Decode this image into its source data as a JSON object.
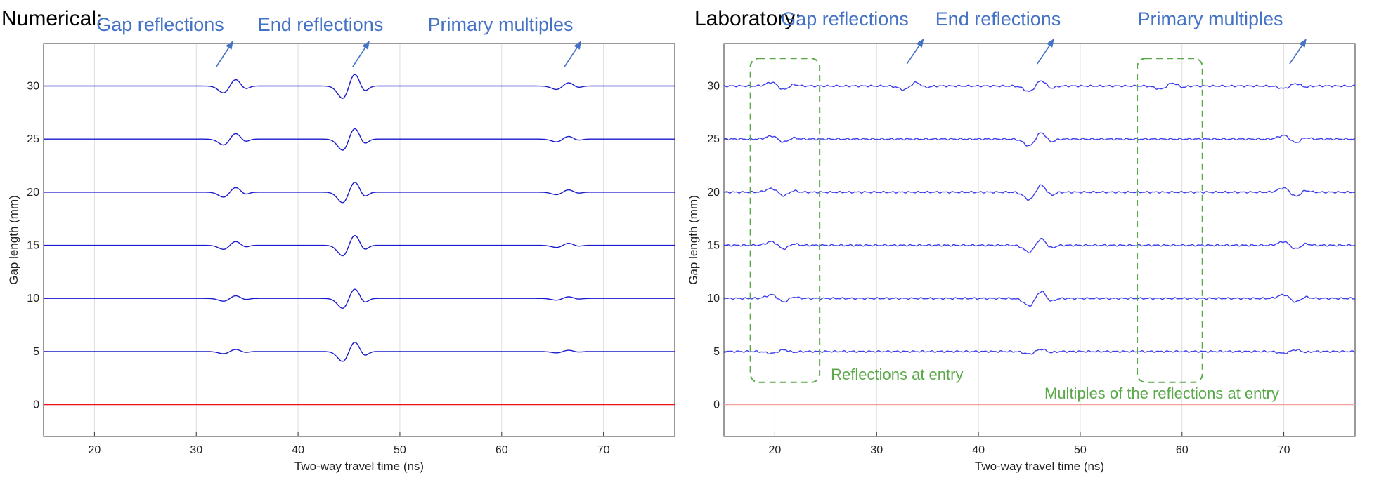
{
  "chart_data": [
    {
      "type": "line",
      "panel_title": "Numerical:",
      "xlabel": "Two-way travel time (ns)",
      "ylabel": "Gap length (mm)",
      "xlim": [
        15,
        77
      ],
      "ylim": [
        -3,
        34
      ],
      "xticks": [
        20,
        30,
        40,
        50,
        60,
        70
      ],
      "yticks": [
        0,
        5,
        10,
        15,
        20,
        25,
        30
      ],
      "grid": "vertical",
      "series": [
        {
          "offset": 0,
          "color": "#ee1111",
          "events": []
        },
        {
          "offset": 5,
          "color": "#1a1acc",
          "events": [
            {
              "t": 33.3,
              "amp": 0.35
            },
            {
              "t": 45.0,
              "amp": 1.6
            },
            {
              "t": 66.0,
              "amp": 0.22
            }
          ]
        },
        {
          "offset": 10,
          "color": "#1a1acc",
          "events": [
            {
              "t": 33.3,
              "amp": 0.45
            },
            {
              "t": 45.0,
              "amp": 1.6
            },
            {
              "t": 66.0,
              "amp": 0.28
            }
          ]
        },
        {
          "offset": 15,
          "color": "#1a1acc",
          "events": [
            {
              "t": 33.3,
              "amp": 0.65
            },
            {
              "t": 45.0,
              "amp": 1.7
            },
            {
              "t": 66.0,
              "amp": 0.35
            }
          ]
        },
        {
          "offset": 20,
          "color": "#1a1acc",
          "events": [
            {
              "t": 33.3,
              "amp": 0.8
            },
            {
              "t": 45.0,
              "amp": 1.7
            },
            {
              "t": 66.0,
              "amp": 0.4
            }
          ]
        },
        {
          "offset": 25,
          "color": "#1a1acc",
          "events": [
            {
              "t": 33.3,
              "amp": 0.95
            },
            {
              "t": 45.0,
              "amp": 1.8
            },
            {
              "t": 66.0,
              "amp": 0.45
            }
          ]
        },
        {
          "offset": 30,
          "color": "#1a1acc",
          "events": [
            {
              "t": 33.3,
              "amp": 1.1
            },
            {
              "t": 45.0,
              "amp": 2.0
            },
            {
              "t": 66.0,
              "amp": 0.55
            }
          ]
        }
      ],
      "annotations": [
        {
          "text": "Gap reflections",
          "arrow_t": 32.8
        },
        {
          "text": "End reflections",
          "arrow_t": 46.2
        },
        {
          "text": "Primary multiples",
          "arrow_t": 67.0
        }
      ]
    },
    {
      "type": "line",
      "panel_title": "Laboratory:",
      "xlabel": "Two-way travel time (ns)",
      "ylabel": "Gap length (mm)",
      "xlim": [
        15,
        77
      ],
      "ylim": [
        -3,
        34
      ],
      "xticks": [
        20,
        30,
        40,
        50,
        60,
        70
      ],
      "yticks": [
        0,
        5,
        10,
        15,
        20,
        25,
        30
      ],
      "grid": "vertical",
      "series": [
        {
          "offset": 0,
          "color": "#f3a0a0",
          "events": []
        },
        {
          "offset": 5,
          "color": "#3d3dee",
          "events": [
            {
              "t": 20.3,
              "amp": 0.3
            },
            {
              "t": 45.6,
              "amp": 0.4
            },
            {
              "t": 70.6,
              "amp": 0.3
            }
          ]
        },
        {
          "offset": 10,
          "color": "#3d3dee",
          "events": [
            {
              "t": 20.3,
              "amp": -0.6
            },
            {
              "t": 45.6,
              "amp": 1.2
            },
            {
              "t": 70.6,
              "amp": -0.6
            }
          ]
        },
        {
          "offset": 15,
          "color": "#3d3dee",
          "events": [
            {
              "t": 20.3,
              "amp": -0.6
            },
            {
              "t": 45.6,
              "amp": 1.1
            },
            {
              "t": 70.6,
              "amp": -0.6
            }
          ]
        },
        {
          "offset": 20,
          "color": "#3d3dee",
          "events": [
            {
              "t": 20.3,
              "amp": -0.6
            },
            {
              "t": 45.6,
              "amp": 1.2
            },
            {
              "t": 70.6,
              "amp": -0.7
            }
          ]
        },
        {
          "offset": 25,
          "color": "#3d3dee",
          "events": [
            {
              "t": 20.3,
              "amp": -0.5
            },
            {
              "t": 45.6,
              "amp": 1.1
            },
            {
              "t": 70.6,
              "amp": -0.6
            }
          ]
        },
        {
          "offset": 30,
          "color": "#3d3dee",
          "events": [
            {
              "t": 20.3,
              "amp": -0.6
            },
            {
              "t": 33.3,
              "amp": 0.6
            },
            {
              "t": 45.6,
              "amp": 0.9
            },
            {
              "t": 58.5,
              "amp": 0.5
            },
            {
              "t": 70.6,
              "amp": 0.4
            }
          ]
        }
      ],
      "annotations": [
        {
          "text": "Gap reflections",
          "arrow_t": 33.8
        },
        {
          "text": "End reflections",
          "arrow_t": 46.6
        },
        {
          "text": "Primary multiples",
          "arrow_t": 71.4
        }
      ],
      "highlight_boxes": [
        {
          "t_range": [
            17.6,
            24.4
          ],
          "y_range": [
            2.1,
            32.6
          ],
          "label": "Reflections at entry"
        },
        {
          "t_range": [
            55.6,
            62.0
          ],
          "y_range": [
            2.1,
            32.6
          ],
          "label": "Multiples of the reflections at entry"
        }
      ]
    }
  ],
  "colors": {
    "annotation": "#4472c4",
    "highlight": "#5aa84a",
    "grid": "#dedede",
    "axis": "#333333"
  }
}
